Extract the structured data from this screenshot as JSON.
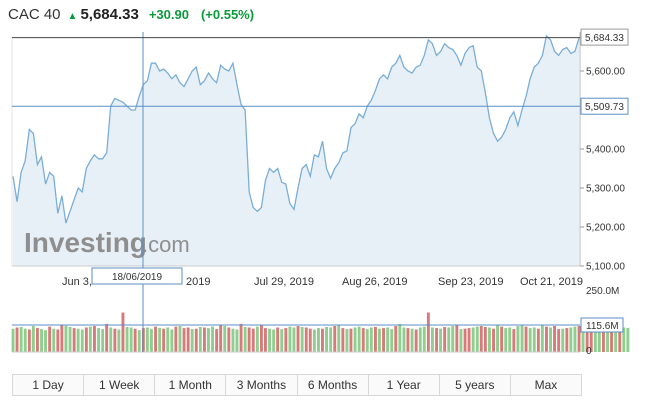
{
  "header": {
    "name": "CAC 40",
    "price": "5,684.33",
    "arrow_icon": "up-arrow-icon",
    "change": "+30.90",
    "change_pct": "(+0.55%)",
    "up_color": "#0a9a3a"
  },
  "watermark": {
    "brand": "Investing",
    "suffix": ".com"
  },
  "crosshair": {
    "date": "18/06/2019",
    "value": "5,509.73"
  },
  "last_price_label": "5,684.33",
  "colors": {
    "line": "#7aaed6",
    "area": "#e8f0f7",
    "up_bar": "#8fce8f",
    "down_bar": "#d77a7a"
  },
  "chart_data": {
    "type": "area",
    "ylim": [
      5100,
      5700
    ],
    "y_ticks": [
      "5,100.00",
      "5,200.00",
      "5,300.00",
      "5,400.00",
      "5,500.00",
      "5,600.00"
    ],
    "y_tick_values": [
      5100,
      5200,
      5300,
      5400,
      5500,
      5600
    ],
    "x_ticks": [
      "Jun 3,",
      "2019",
      "Jul 29, 2019",
      "Aug 26, 2019",
      "Sep 23, 2019",
      "Oct 21, 2019"
    ],
    "x_tick_positions": [
      0,
      4,
      8,
      12,
      16,
      20
    ],
    "sessions": 152,
    "values": [
      5330,
      5265,
      5340,
      5370,
      5450,
      5440,
      5360,
      5380,
      5310,
      5340,
      5330,
      5235,
      5280,
      5210,
      5240,
      5270,
      5300,
      5290,
      5350,
      5370,
      5385,
      5375,
      5375,
      5390,
      5510,
      5530,
      5525,
      5520,
      5510,
      5500,
      5500,
      5535,
      5565,
      5575,
      5620,
      5620,
      5600,
      5605,
      5595,
      5580,
      5590,
      5570,
      5560,
      5580,
      5600,
      5610,
      5565,
      5575,
      5595,
      5580,
      5570,
      5615,
      5605,
      5600,
      5620,
      5565,
      5515,
      5500,
      5290,
      5250,
      5240,
      5250,
      5320,
      5350,
      5340,
      5350,
      5315,
      5310,
      5260,
      5245,
      5300,
      5350,
      5360,
      5330,
      5385,
      5380,
      5420,
      5350,
      5325,
      5350,
      5365,
      5390,
      5395,
      5455,
      5465,
      5490,
      5480,
      5510,
      5525,
      5550,
      5580,
      5590,
      5580,
      5610,
      5620,
      5640,
      5610,
      5600,
      5595,
      5610,
      5615,
      5640,
      5680,
      5670,
      5640,
      5650,
      5670,
      5660,
      5655,
      5640,
      5615,
      5645,
      5660,
      5665,
      5610,
      5600,
      5545,
      5480,
      5440,
      5420,
      5430,
      5450,
      5480,
      5495,
      5460,
      5500,
      5535,
      5580,
      5610,
      5620,
      5640,
      5690,
      5680,
      5650,
      5640,
      5655,
      5660,
      5645,
      5650,
      5684
    ],
    "volume_ticks": [
      "250.0M",
      "0"
    ],
    "volume_label": "115.6M",
    "volume_ylim": [
      0,
      250
    ],
    "volume_values": [
      112,
      118,
      120,
      112,
      108,
      125,
      115,
      110,
      105,
      122,
      112,
      108,
      130,
      126,
      120,
      115,
      112,
      108,
      118,
      122,
      125,
      115,
      110,
      135,
      118,
      112,
      108,
      190,
      120,
      118,
      112,
      105,
      115,
      118,
      110,
      122,
      116,
      112,
      118,
      108,
      122,
      125,
      115,
      118,
      110,
      112,
      120,
      118,
      115,
      122,
      110,
      130,
      125,
      118,
      112,
      108,
      135,
      120,
      118,
      112,
      122,
      128,
      115,
      112,
      108,
      118,
      110,
      115,
      122,
      118,
      125,
      120,
      118,
      112,
      108,
      115,
      112,
      120,
      118,
      125,
      128,
      115,
      110,
      112,
      118,
      122,
      115,
      110,
      118,
      120,
      112,
      115,
      118,
      110,
      125,
      135,
      118,
      115,
      112,
      108,
      118,
      122,
      190,
      118,
      115,
      112,
      120,
      118,
      125,
      128,
      110,
      112,
      115,
      118,
      122,
      125,
      120,
      118,
      112,
      130,
      122,
      115,
      118,
      110,
      125,
      128,
      122,
      115,
      118,
      112,
      130,
      122,
      118,
      125,
      110,
      112,
      115,
      118,
      122,
      125,
      135,
      120,
      118,
      112,
      108,
      115,
      118,
      125,
      128,
      122,
      118,
      116
    ],
    "volume_up": [
      1,
      0,
      1,
      1,
      0,
      1,
      0,
      1,
      1,
      0,
      1,
      0,
      0,
      1,
      1,
      0,
      1,
      1,
      0,
      1,
      0,
      1,
      1,
      0,
      1,
      0,
      1,
      0,
      1,
      1,
      0,
      1,
      0,
      1,
      1,
      0,
      1,
      0,
      1,
      1,
      0,
      1,
      0,
      0,
      1,
      0,
      1,
      0,
      1,
      1,
      0,
      0,
      1,
      0,
      1,
      1,
      0,
      1,
      0,
      0,
      1,
      0,
      0,
      1,
      1,
      0,
      1,
      0,
      1,
      1,
      0,
      1,
      0,
      0,
      1,
      1,
      0,
      1,
      1,
      0,
      1,
      0,
      1,
      0,
      1,
      1,
      0,
      1,
      1,
      0,
      1,
      0,
      1,
      1,
      0,
      1,
      1,
      0,
      1,
      0,
      1,
      1,
      0,
      1,
      0,
      1,
      0,
      1,
      1,
      0,
      1,
      0,
      0,
      1,
      1,
      0,
      0,
      1,
      0,
      1,
      0,
      1,
      1,
      0,
      1,
      1,
      0,
      1,
      1,
      0,
      1,
      0,
      1,
      0,
      0,
      1,
      0,
      1,
      1,
      0,
      1,
      0,
      0,
      1,
      1,
      0,
      1,
      0,
      1,
      0,
      1,
      1
    ]
  },
  "range_tabs": [
    {
      "label": "1 Day"
    },
    {
      "label": "1 Week"
    },
    {
      "label": "1 Month"
    },
    {
      "label": "3 Months"
    },
    {
      "label": "6 Months"
    },
    {
      "label": "1 Year"
    },
    {
      "label": "5 years"
    },
    {
      "label": "Max"
    }
  ]
}
